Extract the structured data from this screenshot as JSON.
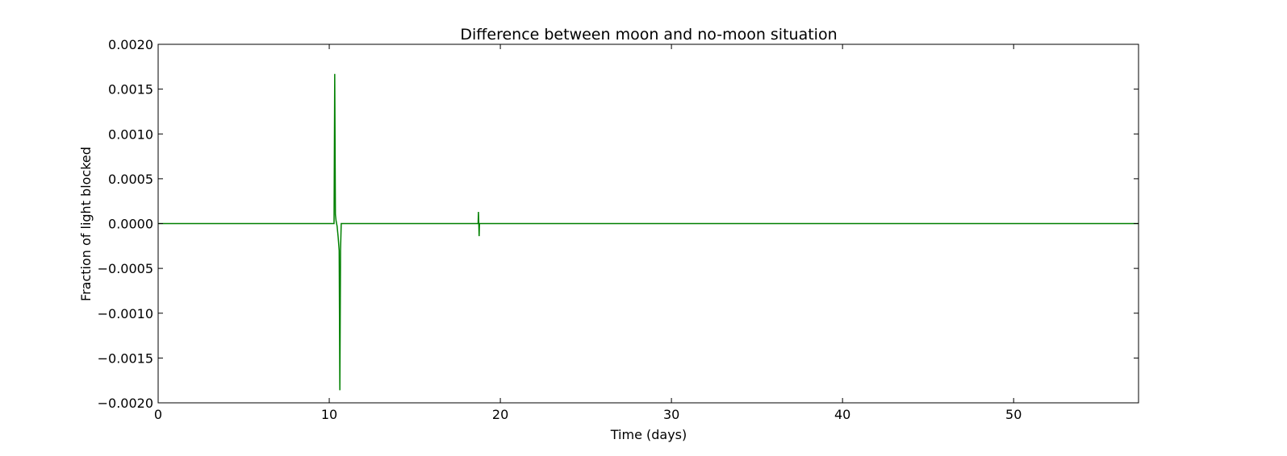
{
  "chart_data": {
    "type": "line",
    "title": "Difference between moon and no-moon situation",
    "xlabel": "Time (days)",
    "ylabel": "Fraction of light blocked",
    "xlim": [
      0,
      57.3
    ],
    "ylim": [
      -0.002,
      0.002
    ],
    "grid": false,
    "x_ticks": [
      0,
      10,
      20,
      30,
      40,
      50
    ],
    "x_tick_labels": [
      "0",
      "10",
      "20",
      "30",
      "40",
      "50"
    ],
    "y_ticks": [
      0.002,
      0.0015,
      0.001,
      0.0005,
      0.0,
      -0.0005,
      -0.001,
      -0.0015,
      -0.002
    ],
    "y_tick_labels": [
      "0.0020",
      "0.0015",
      "0.0010",
      "0.0005",
      "0.0000",
      "−0.0005",
      "−0.0010",
      "−0.0015",
      "−0.0020"
    ],
    "series": [
      {
        "color": "#008000",
        "x": [
          0,
          10.28,
          10.32,
          10.36,
          10.4,
          10.46,
          10.52,
          10.58,
          10.62,
          10.66,
          10.7,
          18.7,
          18.72,
          18.74,
          18.76,
          18.78,
          23.0,
          57.3
        ],
        "y": [
          0,
          0.0,
          0.00167,
          0.0001,
          3e-05,
          -3e-05,
          -0.00015,
          -0.0003,
          -0.00186,
          -0.0003,
          0.0,
          0.0,
          0.00013,
          0.0,
          -0.00014,
          0.0,
          0.0,
          0.0
        ]
      }
    ]
  }
}
